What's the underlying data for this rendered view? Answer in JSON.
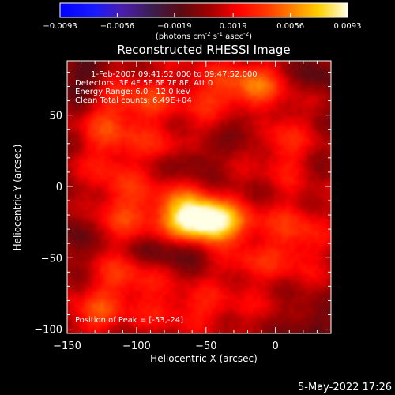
{
  "chart_data": {
    "type": "heatmap",
    "title": "Reconstructed RHESSI Image",
    "xlabel": "Heliocentric X (arcsec)",
    "ylabel": "Heliocentric Y (arcsec)",
    "xlim": [
      -150,
      40
    ],
    "ylim": [
      -103,
      88
    ],
    "x_ticks": [
      -150,
      -100,
      -50,
      0
    ],
    "y_ticks": [
      50,
      0,
      -50,
      -100
    ],
    "colorbar": {
      "min": -0.0093,
      "max": 0.0093,
      "ticks": [
        -0.0093,
        -0.0056,
        -0.0019,
        0.0019,
        0.0056,
        0.0093
      ],
      "label_main": "(photons cm",
      "label_sup1": "-2",
      "label_s": " s",
      "label_sup2": "-1",
      "label_asec": " asec",
      "label_sup3": "-2",
      "label_close": ")"
    },
    "annotations": [
      "1-Feb-2007 09:41:52.000 to 09:47:52.000",
      "Detectors: 3F 4F 5F 6F 7F 8F, Att 0",
      "Energy Range: 6.0 - 12.0 keV",
      "Clean     Total counts: 6.49E+04"
    ],
    "peak_text": "Position of Peak = [-53,-24]",
    "peak": [
      -53,
      -24
    ],
    "components": [
      {
        "x": -53,
        "y": -24,
        "sx": 16,
        "sy": 10,
        "amp": 0.0093
      },
      {
        "x": -70,
        "y": -15,
        "sx": 18,
        "sy": 12,
        "amp": 0.0035
      },
      {
        "x": -30,
        "y": -28,
        "sx": 16,
        "sy": 10,
        "amp": 0.003
      },
      {
        "x": -110,
        "y": -15,
        "sx": 14,
        "sy": 20,
        "amp": 0.0028
      },
      {
        "x": -120,
        "y": 40,
        "sx": 14,
        "sy": 22,
        "amp": 0.003
      },
      {
        "x": -95,
        "y": 60,
        "sx": 14,
        "sy": 12,
        "amp": 0.0026
      },
      {
        "x": -45,
        "y": 65,
        "sx": 22,
        "sy": 14,
        "amp": 0.0027
      },
      {
        "x": -15,
        "y": 70,
        "sx": 14,
        "sy": 12,
        "amp": 0.0036
      },
      {
        "x": 5,
        "y": 30,
        "sx": 12,
        "sy": 18,
        "amp": 0.0027
      },
      {
        "x": 15,
        "y": -35,
        "sx": 14,
        "sy": 18,
        "amp": 0.003
      },
      {
        "x": -20,
        "y": -55,
        "sx": 18,
        "sy": 10,
        "amp": 0.0022
      },
      {
        "x": -110,
        "y": -65,
        "sx": 18,
        "sy": 12,
        "amp": 0.0028
      },
      {
        "x": -60,
        "y": -85,
        "sx": 30,
        "sy": 10,
        "amp": 0.0024
      },
      {
        "x": -130,
        "y": -90,
        "sx": 14,
        "sy": 10,
        "amp": 0.003
      },
      {
        "x": -80,
        "y": 30,
        "sx": 18,
        "sy": 10,
        "amp": 0.0018
      },
      {
        "x": -60,
        "y": 20,
        "sx": 10,
        "sy": 8,
        "amp": -0.0022
      },
      {
        "x": -140,
        "y": 75,
        "sx": 12,
        "sy": 12,
        "amp": -0.0025
      },
      {
        "x": 30,
        "y": 80,
        "sx": 10,
        "sy": 12,
        "amp": -0.002
      },
      {
        "x": -75,
        "y": -45,
        "sx": 25,
        "sy": 8,
        "amp": -0.002
      },
      {
        "x": -20,
        "y": 45,
        "sx": 14,
        "sy": 10,
        "amp": -0.0018
      },
      {
        "x": 25,
        "y": -95,
        "sx": 12,
        "sy": 10,
        "amp": -0.002
      },
      {
        "x": -145,
        "y": -35,
        "sx": 8,
        "sy": 16,
        "amp": -0.0018
      }
    ],
    "grid": false,
    "colormap": "rhessi_std_gamma"
  },
  "footer": {
    "date": "5-May-2022 17:26"
  }
}
